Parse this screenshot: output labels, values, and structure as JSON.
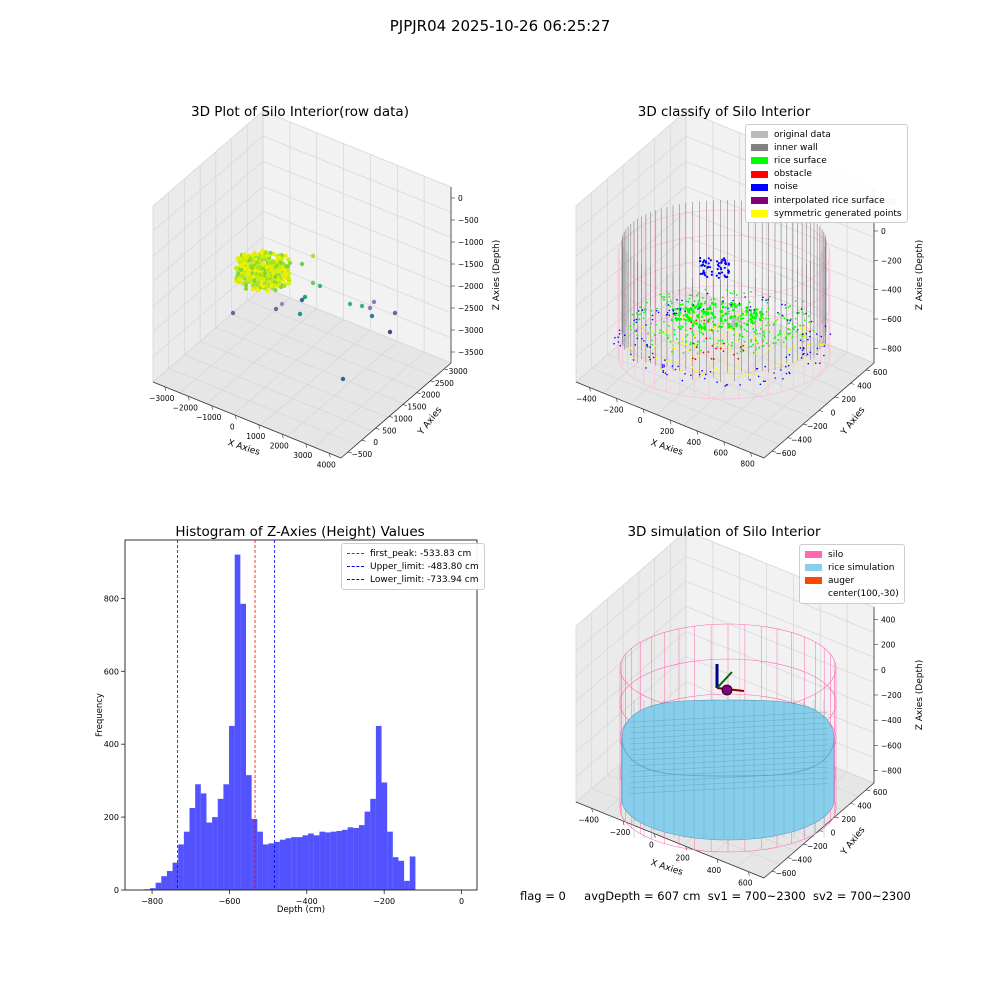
{
  "suptitle": "PJPJR04 2025-10-26 06:25:27",
  "panels": {
    "raw": {
      "title": "3D Plot of Silo Interior(row data)",
      "xlabel": "X Axies",
      "ylabel": "Y Axies",
      "zlabel": "Z Axies (Depth)",
      "xticks": [
        "−3000",
        "−2000",
        "−1000",
        "0",
        "1000",
        "2000",
        "3000",
        "4000"
      ],
      "yticks": [
        "−500",
        "0",
        "500",
        "1000",
        "1500",
        "2000",
        "2500",
        "3000"
      ],
      "zticks": [
        "0",
        "−500",
        "−1000",
        "−1500",
        "−2000",
        "−2500",
        "−3000",
        "−3500"
      ]
    },
    "classify": {
      "title": "3D classify of Silo Interior",
      "xlabel": "X Axies",
      "ylabel": "Y Axies",
      "zlabel": "Z Axies (Depth)",
      "xticks": [
        "−400",
        "−200",
        "0",
        "200",
        "400",
        "600",
        "800"
      ],
      "yticks": [
        "−600",
        "−400",
        "−200",
        "0",
        "200",
        "400",
        "600"
      ],
      "zticks": [
        "200",
        "0",
        "−200",
        "−400",
        "−600",
        "−800"
      ],
      "legend": [
        {
          "label": "original data",
          "color": "#bbbbbb"
        },
        {
          "label": "inner wall",
          "color": "#808080"
        },
        {
          "label": "rice surface",
          "color": "#00ff00"
        },
        {
          "label": "obstacle",
          "color": "#ff0000"
        },
        {
          "label": "noise",
          "color": "#0000ff"
        },
        {
          "label": "interpolated rice surface",
          "color": "#800080"
        },
        {
          "label": "symmetric generated points",
          "color": "#ffff00"
        }
      ]
    },
    "simulation": {
      "title": "3D simulation of Silo Interior",
      "xlabel": "X Axies",
      "ylabel": "Y Axies",
      "zlabel": "Z Axies (Depth)",
      "xticks": [
        "−400",
        "−200",
        "0",
        "200",
        "400",
        "600"
      ],
      "yticks": [
        "−600",
        "−400",
        "−200",
        "0",
        "200",
        "400",
        "600"
      ],
      "zticks": [
        "400",
        "200",
        "0",
        "−200",
        "−400",
        "−600",
        "−800"
      ],
      "legend": [
        {
          "label": "silo",
          "color": "#ff69b4"
        },
        {
          "label": "rice simulation",
          "color": "#87ceeb"
        },
        {
          "label": "auger",
          "color": "#ff4500"
        },
        {
          "label": "center(100,-30)",
          "color": ""
        }
      ]
    }
  },
  "footer": {
    "flag": "flag = 0",
    "avg": "avgDepth = 607 cm",
    "sv1": "sv1 = 700~2300",
    "sv2": "sv2 = 700~2300"
  },
  "colors": {
    "hist": "#0000ff",
    "silo": "#ff69b4",
    "rice": "#87ceeb",
    "wall": "#808080",
    "surface": "#00ff00",
    "noise": "#0000ff"
  },
  "chart_data": [
    {
      "type": "bar",
      "title": "Histogram of Z-Axies (Height) Values",
      "xlabel": "Depth (cm)",
      "ylabel": "Frequency",
      "xlim": [
        -870,
        40
      ],
      "ylim": [
        0,
        960
      ],
      "xticks": [
        -800,
        -600,
        -400,
        -200,
        0
      ],
      "yticks": [
        0,
        200,
        400,
        600,
        800
      ],
      "bin_start": -820,
      "bin_width": 14.6,
      "values": [
        2,
        5,
        20,
        38,
        52,
        75,
        125,
        160,
        225,
        290,
        265,
        185,
        200,
        250,
        290,
        450,
        920,
        785,
        315,
        195,
        160,
        125,
        128,
        132,
        138,
        142,
        145,
        145,
        150,
        155,
        150,
        160,
        158,
        160,
        162,
        165,
        172,
        170,
        178,
        215,
        250,
        450,
        295,
        160,
        90,
        80,
        25,
        92
      ],
      "vlines": [
        {
          "x": -533.83,
          "color": "#ff0000",
          "label": "first_peak: -533.83 cm"
        },
        {
          "x": -483.8,
          "color": "#0000ff",
          "label": "Upper_limit: -483.80 cm"
        },
        {
          "x": -733.94,
          "color": "#0000ff",
          "label": "Lower_limit: -733.94 cm"
        }
      ],
      "legend_position": "top-right"
    }
  ]
}
